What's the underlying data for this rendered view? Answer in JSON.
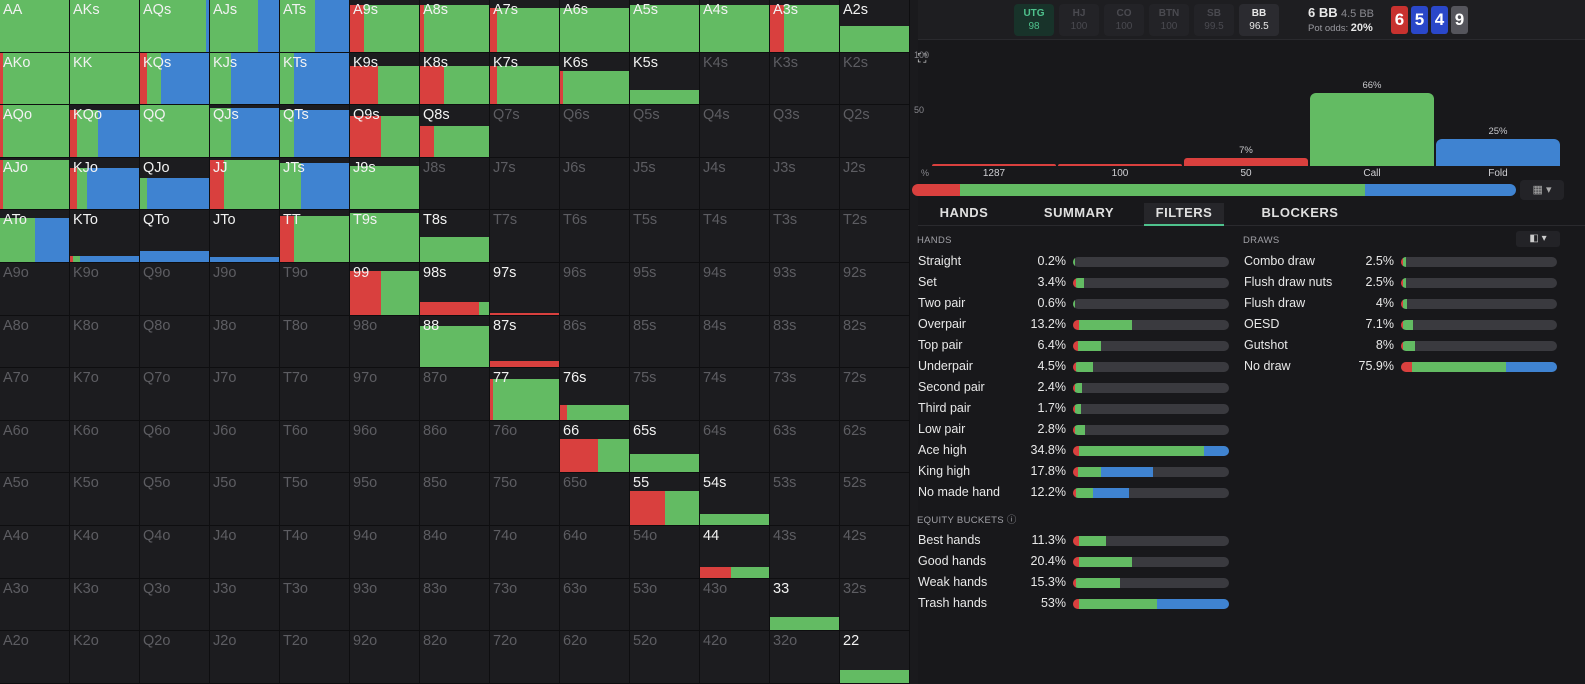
{
  "colors": {
    "raise": "#d9403e",
    "call": "#63bb63",
    "fold": "#3f83d1"
  },
  "matrix": {
    "rows": [
      [
        "AA",
        "AKs",
        "AQs",
        "AJs",
        "ATs",
        "A9s",
        "A8s",
        "A7s",
        "A6s",
        "A5s",
        "A4s",
        "A3s",
        "A2s"
      ],
      [
        "AKo",
        "KK",
        "KQs",
        "KJs",
        "KTs",
        "K9s",
        "K8s",
        "K7s",
        "K6s",
        "K5s",
        "K4s",
        "K3s",
        "K2s"
      ],
      [
        "AQo",
        "KQo",
        "QQ",
        "QJs",
        "QTs",
        "Q9s",
        "Q8s",
        "Q7s",
        "Q6s",
        "Q5s",
        "Q4s",
        "Q3s",
        "Q2s"
      ],
      [
        "AJo",
        "KJo",
        "QJo",
        "JJ",
        "JTs",
        "J9s",
        "J8s",
        "J7s",
        "J6s",
        "J5s",
        "J4s",
        "J3s",
        "J2s"
      ],
      [
        "ATo",
        "KTo",
        "QTo",
        "JTo",
        "TT",
        "T9s",
        "T8s",
        "T7s",
        "T6s",
        "T5s",
        "T4s",
        "T3s",
        "T2s"
      ],
      [
        "A9o",
        "K9o",
        "Q9o",
        "J9o",
        "T9o",
        "99",
        "98s",
        "97s",
        "96s",
        "95s",
        "94s",
        "93s",
        "92s"
      ],
      [
        "A8o",
        "K8o",
        "Q8o",
        "J8o",
        "T8o",
        "98o",
        "88",
        "87s",
        "86s",
        "85s",
        "84s",
        "83s",
        "82s"
      ],
      [
        "A7o",
        "K7o",
        "Q7o",
        "J7o",
        "T7o",
        "97o",
        "87o",
        "77",
        "76s",
        "75s",
        "74s",
        "73s",
        "72s"
      ],
      [
        "A6o",
        "K6o",
        "Q6o",
        "J6o",
        "T6o",
        "96o",
        "86o",
        "76o",
        "66",
        "65s",
        "64s",
        "63s",
        "62s"
      ],
      [
        "A5o",
        "K5o",
        "Q5o",
        "J5o",
        "T5o",
        "95o",
        "85o",
        "75o",
        "65o",
        "55",
        "54s",
        "53s",
        "52s"
      ],
      [
        "A4o",
        "K4o",
        "Q4o",
        "J4o",
        "T4o",
        "94o",
        "84o",
        "74o",
        "64o",
        "54o",
        "44",
        "43s",
        "42s"
      ],
      [
        "A3o",
        "K3o",
        "Q3o",
        "J3o",
        "T3o",
        "93o",
        "83o",
        "73o",
        "63o",
        "53o",
        "43o",
        "33",
        "32s"
      ],
      [
        "A2o",
        "K2o",
        "Q2o",
        "J2o",
        "T2o",
        "92o",
        "82o",
        "72o",
        "62o",
        "52o",
        "42o",
        "32o",
        "22"
      ]
    ],
    "freq": {
      "AA": {
        "fill": 1,
        "r": 0,
        "c": 1,
        "f": 0
      },
      "AKs": {
        "fill": 1,
        "r": 0,
        "c": 1,
        "f": 0
      },
      "AQs": {
        "fill": 1,
        "r": 0,
        "c": 0.95,
        "f": 0.05
      },
      "AJs": {
        "fill": 1,
        "r": 0,
        "c": 0.7,
        "f": 0.3
      },
      "ATs": {
        "fill": 1,
        "r": 0,
        "c": 0.5,
        "f": 0.5
      },
      "A9s": {
        "fill": 0.9,
        "r": 0.2,
        "c": 0.8,
        "f": 0
      },
      "A8s": {
        "fill": 0.9,
        "r": 0.06,
        "c": 0.94,
        "f": 0
      },
      "A7s": {
        "fill": 0.85,
        "r": 0.1,
        "c": 0.9,
        "f": 0
      },
      "A6s": {
        "fill": 0.85,
        "r": 0,
        "c": 1,
        "f": 0
      },
      "A5s": {
        "fill": 0.9,
        "r": 0,
        "c": 1,
        "f": 0
      },
      "A4s": {
        "fill": 0.9,
        "r": 0,
        "c": 1,
        "f": 0
      },
      "A3s": {
        "fill": 0.9,
        "r": 0.2,
        "c": 0.8,
        "f": 0
      },
      "A2s": {
        "fill": 0.5,
        "r": 0,
        "c": 1,
        "f": 0
      },
      "AKo": {
        "fill": 1,
        "r": 0.05,
        "c": 0.95,
        "f": 0
      },
      "KK": {
        "fill": 1,
        "r": 0,
        "c": 1,
        "f": 0
      },
      "KQs": {
        "fill": 1,
        "r": 0.1,
        "c": 0.2,
        "f": 0.7
      },
      "KJs": {
        "fill": 1,
        "r": 0,
        "c": 0.3,
        "f": 0.7
      },
      "KTs": {
        "fill": 1,
        "r": 0,
        "c": 0.2,
        "f": 0.8
      },
      "K9s": {
        "fill": 0.75,
        "r": 0.4,
        "c": 0.6,
        "f": 0
      },
      "K8s": {
        "fill": 0.75,
        "r": 0.35,
        "c": 0.65,
        "f": 0
      },
      "K7s": {
        "fill": 0.75,
        "r": 0.1,
        "c": 0.9,
        "f": 0
      },
      "K6s": {
        "fill": 0.65,
        "r": 0.05,
        "c": 0.95,
        "f": 0
      },
      "K5s": {
        "fill": 0.28,
        "r": 0,
        "c": 1,
        "f": 0
      },
      "AQo": {
        "fill": 1,
        "r": 0.05,
        "c": 0.95,
        "f": 0
      },
      "KQo": {
        "fill": 0.9,
        "r": 0.1,
        "c": 0.3,
        "f": 0.6
      },
      "QQ": {
        "fill": 1,
        "r": 0,
        "c": 1,
        "f": 0
      },
      "QJs": {
        "fill": 0.95,
        "r": 0,
        "c": 0.3,
        "f": 0.7
      },
      "QTs": {
        "fill": 0.9,
        "r": 0,
        "c": 0.2,
        "f": 0.8
      },
      "Q9s": {
        "fill": 0.8,
        "r": 0.45,
        "c": 0.55,
        "f": 0
      },
      "Q8s": {
        "fill": 0.6,
        "r": 0.2,
        "c": 0.8,
        "f": 0
      },
      "AJo": {
        "fill": 0.95,
        "r": 0.05,
        "c": 0.95,
        "f": 0
      },
      "KJo": {
        "fill": 0.8,
        "r": 0.1,
        "c": 0.15,
        "f": 0.75
      },
      "QJo": {
        "fill": 0.6,
        "r": 0,
        "c": 0.1,
        "f": 0.9
      },
      "JJ": {
        "fill": 0.95,
        "r": 0.2,
        "c": 0.8,
        "f": 0
      },
      "JTs": {
        "fill": 0.9,
        "r": 0,
        "c": 0.3,
        "f": 0.7
      },
      "J9s": {
        "fill": 0.85,
        "r": 0,
        "c": 1,
        "f": 0
      },
      "ATo": {
        "fill": 0.85,
        "r": 0,
        "c": 0.5,
        "f": 0.5
      },
      "KTo": {
        "fill": 0.12,
        "r": 0.05,
        "c": 0.1,
        "f": 0.85
      },
      "QTo": {
        "fill": 0.22,
        "r": 0,
        "c": 0,
        "f": 1
      },
      "JTo": {
        "fill": 0.1,
        "r": 0,
        "c": 0,
        "f": 1
      },
      "TT": {
        "fill": 0.9,
        "r": 0.2,
        "c": 0.8,
        "f": 0
      },
      "T9s": {
        "fill": 0.95,
        "r": 0,
        "c": 1,
        "f": 0
      },
      "T8s": {
        "fill": 0.48,
        "r": 0,
        "c": 1,
        "f": 0
      },
      "99": {
        "fill": 0.85,
        "r": 0.45,
        "c": 0.55,
        "f": 0
      },
      "98s": {
        "fill": 0.25,
        "r": 0.85,
        "c": 0.15,
        "f": 0
      },
      "97s": {
        "fill": 0.04,
        "r": 1,
        "c": 0,
        "f": 0
      },
      "88": {
        "fill": 0.8,
        "r": 0,
        "c": 1,
        "f": 0
      },
      "87s": {
        "fill": 0.12,
        "r": 1,
        "c": 0,
        "f": 0
      },
      "77": {
        "fill": 0.8,
        "r": 0.05,
        "c": 0.95,
        "f": 0
      },
      "76s": {
        "fill": 0.28,
        "r": 0.1,
        "c": 0.9,
        "f": 0
      },
      "66": {
        "fill": 0.65,
        "r": 0.55,
        "c": 0.45,
        "f": 0
      },
      "65s": {
        "fill": 0.35,
        "r": 0,
        "c": 1,
        "f": 0
      },
      "55": {
        "fill": 0.65,
        "r": 0.5,
        "c": 0.5,
        "f": 0
      },
      "54s": {
        "fill": 0.22,
        "r": 0,
        "c": 1,
        "f": 0
      },
      "44": {
        "fill": 0.2,
        "r": 0.45,
        "c": 0.55,
        "f": 0
      },
      "33": {
        "fill": 0.25,
        "r": 0,
        "c": 1,
        "f": 0
      },
      "22": {
        "fill": 0.25,
        "r": 0,
        "c": 1,
        "f": 0
      }
    }
  },
  "topbar": {
    "positions": [
      {
        "name": "UTG",
        "stack": "98",
        "state": "active"
      },
      {
        "name": "HJ",
        "stack": "100",
        "state": "dim"
      },
      {
        "name": "CO",
        "stack": "100",
        "state": "dim"
      },
      {
        "name": "BTN",
        "stack": "100",
        "state": "dim"
      },
      {
        "name": "SB",
        "stack": "99.5",
        "state": "dim"
      },
      {
        "name": "BB",
        "stack": "96.5",
        "state": "bb"
      }
    ],
    "pot": "6 BB",
    "pot_sub": "4.5 BB",
    "odds_label": "Pot odds:",
    "odds_value": "20%",
    "cards": [
      {
        "rank": "6",
        "color": "#c8322f"
      },
      {
        "rank": "5",
        "color": "#2a47c9"
      },
      {
        "rank": "4",
        "color": "#2a47c9"
      },
      {
        "rank": "9",
        "color": "#55555c"
      }
    ]
  },
  "chart_data": {
    "type": "bar",
    "categories": [
      "1287",
      "100",
      "50",
      "Call",
      "Fold"
    ],
    "values": [
      0.3,
      1,
      7,
      66,
      25
    ],
    "labels": [
      "",
      "",
      "7%",
      "66%",
      "25%"
    ],
    "series_colors": [
      "#d9403e",
      "#d9403e",
      "#d9403e",
      "#63bb63",
      "#3f83d1"
    ],
    "ylim": [
      0,
      100
    ],
    "yticks": [
      "100",
      "50"
    ],
    "ylabel": "%"
  },
  "mix": {
    "r": 0.08,
    "c": 0.67,
    "f": 0.25
  },
  "grid_button": "▦ ▾",
  "tabs": [
    "HANDS",
    "SUMMARY",
    "FILTERS",
    "BLOCKERS"
  ],
  "hands_title": "HANDS",
  "draws_title": "DRAWS",
  "equity_title": "EQUITY BUCKETS",
  "equity_info": "ⓘ",
  "toggle": "◧ ▾",
  "hands": [
    {
      "name": "Straight",
      "pct": "0.2%",
      "r": 0,
      "c": 0.01,
      "f": 0
    },
    {
      "name": "Set",
      "pct": "3.4%",
      "r": 0.02,
      "c": 0.05,
      "f": 0
    },
    {
      "name": "Two pair",
      "pct": "0.6%",
      "r": 0,
      "c": 0.01,
      "f": 0
    },
    {
      "name": "Overpair",
      "pct": "13.2%",
      "r": 0.04,
      "c": 0.34,
      "f": 0
    },
    {
      "name": "Top pair",
      "pct": "6.4%",
      "r": 0.03,
      "c": 0.15,
      "f": 0
    },
    {
      "name": "Underpair",
      "pct": "4.5%",
      "r": 0.02,
      "c": 0.11,
      "f": 0
    },
    {
      "name": "Second pair",
      "pct": "2.4%",
      "r": 0.01,
      "c": 0.05,
      "f": 0
    },
    {
      "name": "Third pair",
      "pct": "1.7%",
      "r": 0.01,
      "c": 0.04,
      "f": 0
    },
    {
      "name": "Low pair",
      "pct": "2.8%",
      "r": 0.01,
      "c": 0.07,
      "f": 0
    },
    {
      "name": "Ace high",
      "pct": "34.8%",
      "r": 0.04,
      "c": 0.8,
      "f": 0.16
    },
    {
      "name": "King high",
      "pct": "17.8%",
      "r": 0.03,
      "c": 0.15,
      "f": 0.33
    },
    {
      "name": "No made hand",
      "pct": "12.2%",
      "r": 0.02,
      "c": 0.11,
      "f": 0.23
    }
  ],
  "equity": [
    {
      "name": "Best hands",
      "pct": "11.3%",
      "r": 0.04,
      "c": 0.17,
      "f": 0
    },
    {
      "name": "Good hands",
      "pct": "20.4%",
      "r": 0.04,
      "c": 0.34,
      "f": 0
    },
    {
      "name": "Weak hands",
      "pct": "15.3%",
      "r": 0.02,
      "c": 0.28,
      "f": 0
    },
    {
      "name": "Trash hands",
      "pct": "53%",
      "r": 0.04,
      "c": 0.5,
      "f": 0.46
    }
  ],
  "draws": [
    {
      "name": "Combo draw",
      "pct": "2.5%",
      "r": 0.01,
      "c": 0.02,
      "f": 0
    },
    {
      "name": "Flush draw nuts",
      "pct": "2.5%",
      "r": 0.01,
      "c": 0.02,
      "f": 0
    },
    {
      "name": "Flush draw",
      "pct": "4%",
      "r": 0.01,
      "c": 0.03,
      "f": 0
    },
    {
      "name": "OESD",
      "pct": "7.1%",
      "r": 0.01,
      "c": 0.07,
      "f": 0
    },
    {
      "name": "Gutshot",
      "pct": "8%",
      "r": 0.01,
      "c": 0.08,
      "f": 0
    },
    {
      "name": "No draw",
      "pct": "75.9%",
      "r": 0.07,
      "c": 0.6,
      "f": 0.33
    }
  ]
}
